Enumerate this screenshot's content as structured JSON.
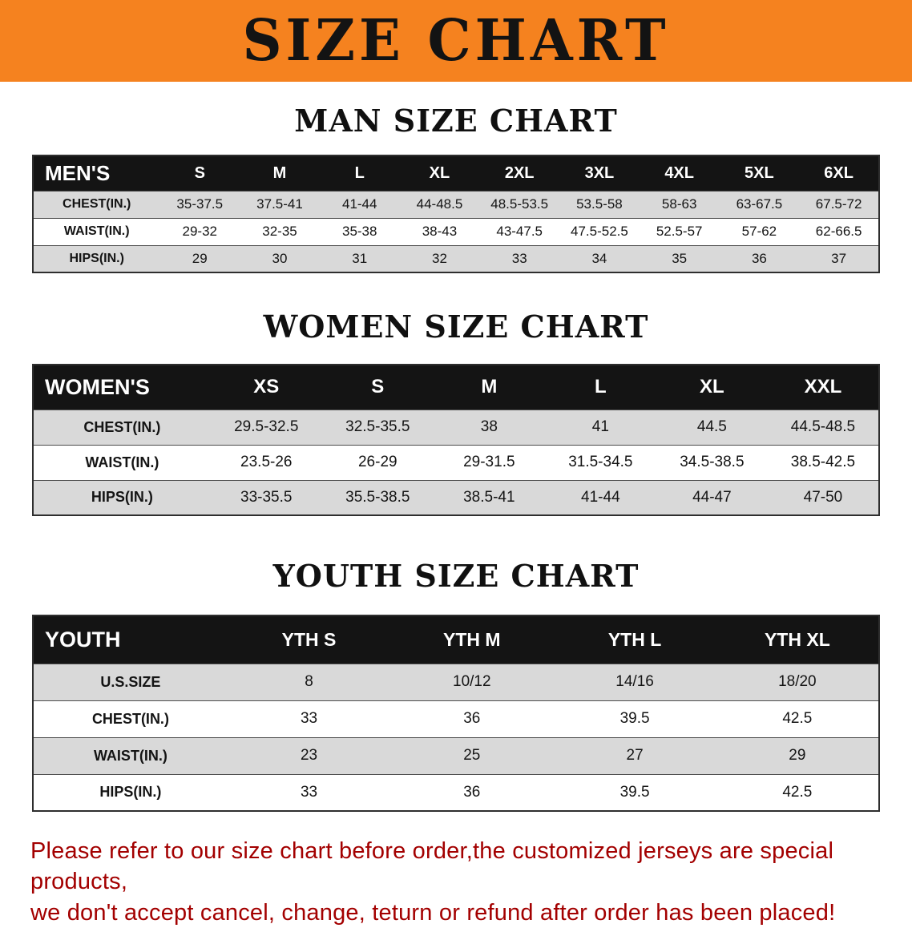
{
  "banner": {
    "title": "SIZE CHART",
    "bg_color": "#F5821F"
  },
  "sections": [
    {
      "id": "men",
      "heading": "MAN SIZE CHART",
      "table": {
        "header": [
          "MEN'S",
          "S",
          "M",
          "L",
          "XL",
          "2XL",
          "3XL",
          "4XL",
          "5XL",
          "6XL"
        ],
        "rows": [
          [
            "CHEST(IN.)",
            "35-37.5",
            "37.5-41",
            "41-44",
            "44-48.5",
            "48.5-53.5",
            "53.5-58",
            "58-63",
            "63-67.5",
            "67.5-72"
          ],
          [
            "WAIST(IN.)",
            "29-32",
            "32-35",
            "35-38",
            "38-43",
            "43-47.5",
            "47.5-52.5",
            "52.5-57",
            "57-62",
            "62-66.5"
          ],
          [
            "HIPS(IN.)",
            "29",
            "30",
            "31",
            "32",
            "33",
            "34",
            "35",
            "36",
            "37"
          ]
        ]
      }
    },
    {
      "id": "women",
      "heading": "WOMEN SIZE CHART",
      "table": {
        "header": [
          "WOMEN'S",
          "XS",
          "S",
          "M",
          "L",
          "XL",
          "XXL"
        ],
        "rows": [
          [
            "CHEST(IN.)",
            "29.5-32.5",
            "32.5-35.5",
            "38",
            "41",
            "44.5",
            "44.5-48.5"
          ],
          [
            "WAIST(IN.)",
            "23.5-26",
            "26-29",
            "29-31.5",
            "31.5-34.5",
            "34.5-38.5",
            "38.5-42.5"
          ],
          [
            "HIPS(IN.)",
            "33-35.5",
            "35.5-38.5",
            "38.5-41",
            "41-44",
            "44-47",
            "47-50"
          ]
        ]
      }
    },
    {
      "id": "youth",
      "heading": "YOUTH SIZE CHART",
      "table": {
        "header": [
          "YOUTH",
          "YTH S",
          "YTH M",
          "YTH L",
          "YTH XL"
        ],
        "rows": [
          [
            "U.S.SIZE",
            "8",
            "10/12",
            "14/16",
            "18/20"
          ],
          [
            "CHEST(IN.)",
            "33",
            "36",
            "39.5",
            "42.5"
          ],
          [
            "WAIST(IN.)",
            "23",
            "25",
            "27",
            "29"
          ],
          [
            "HIPS(IN.)",
            "33",
            "36",
            "39.5",
            "42.5"
          ]
        ]
      }
    }
  ],
  "footer_note": {
    "color": "#A30000",
    "lines": [
      "Please refer to our size chart before order,the customized jerseys are special products,",
      "we don't accept cancel, change, teturn or refund after order has been placed!"
    ]
  }
}
